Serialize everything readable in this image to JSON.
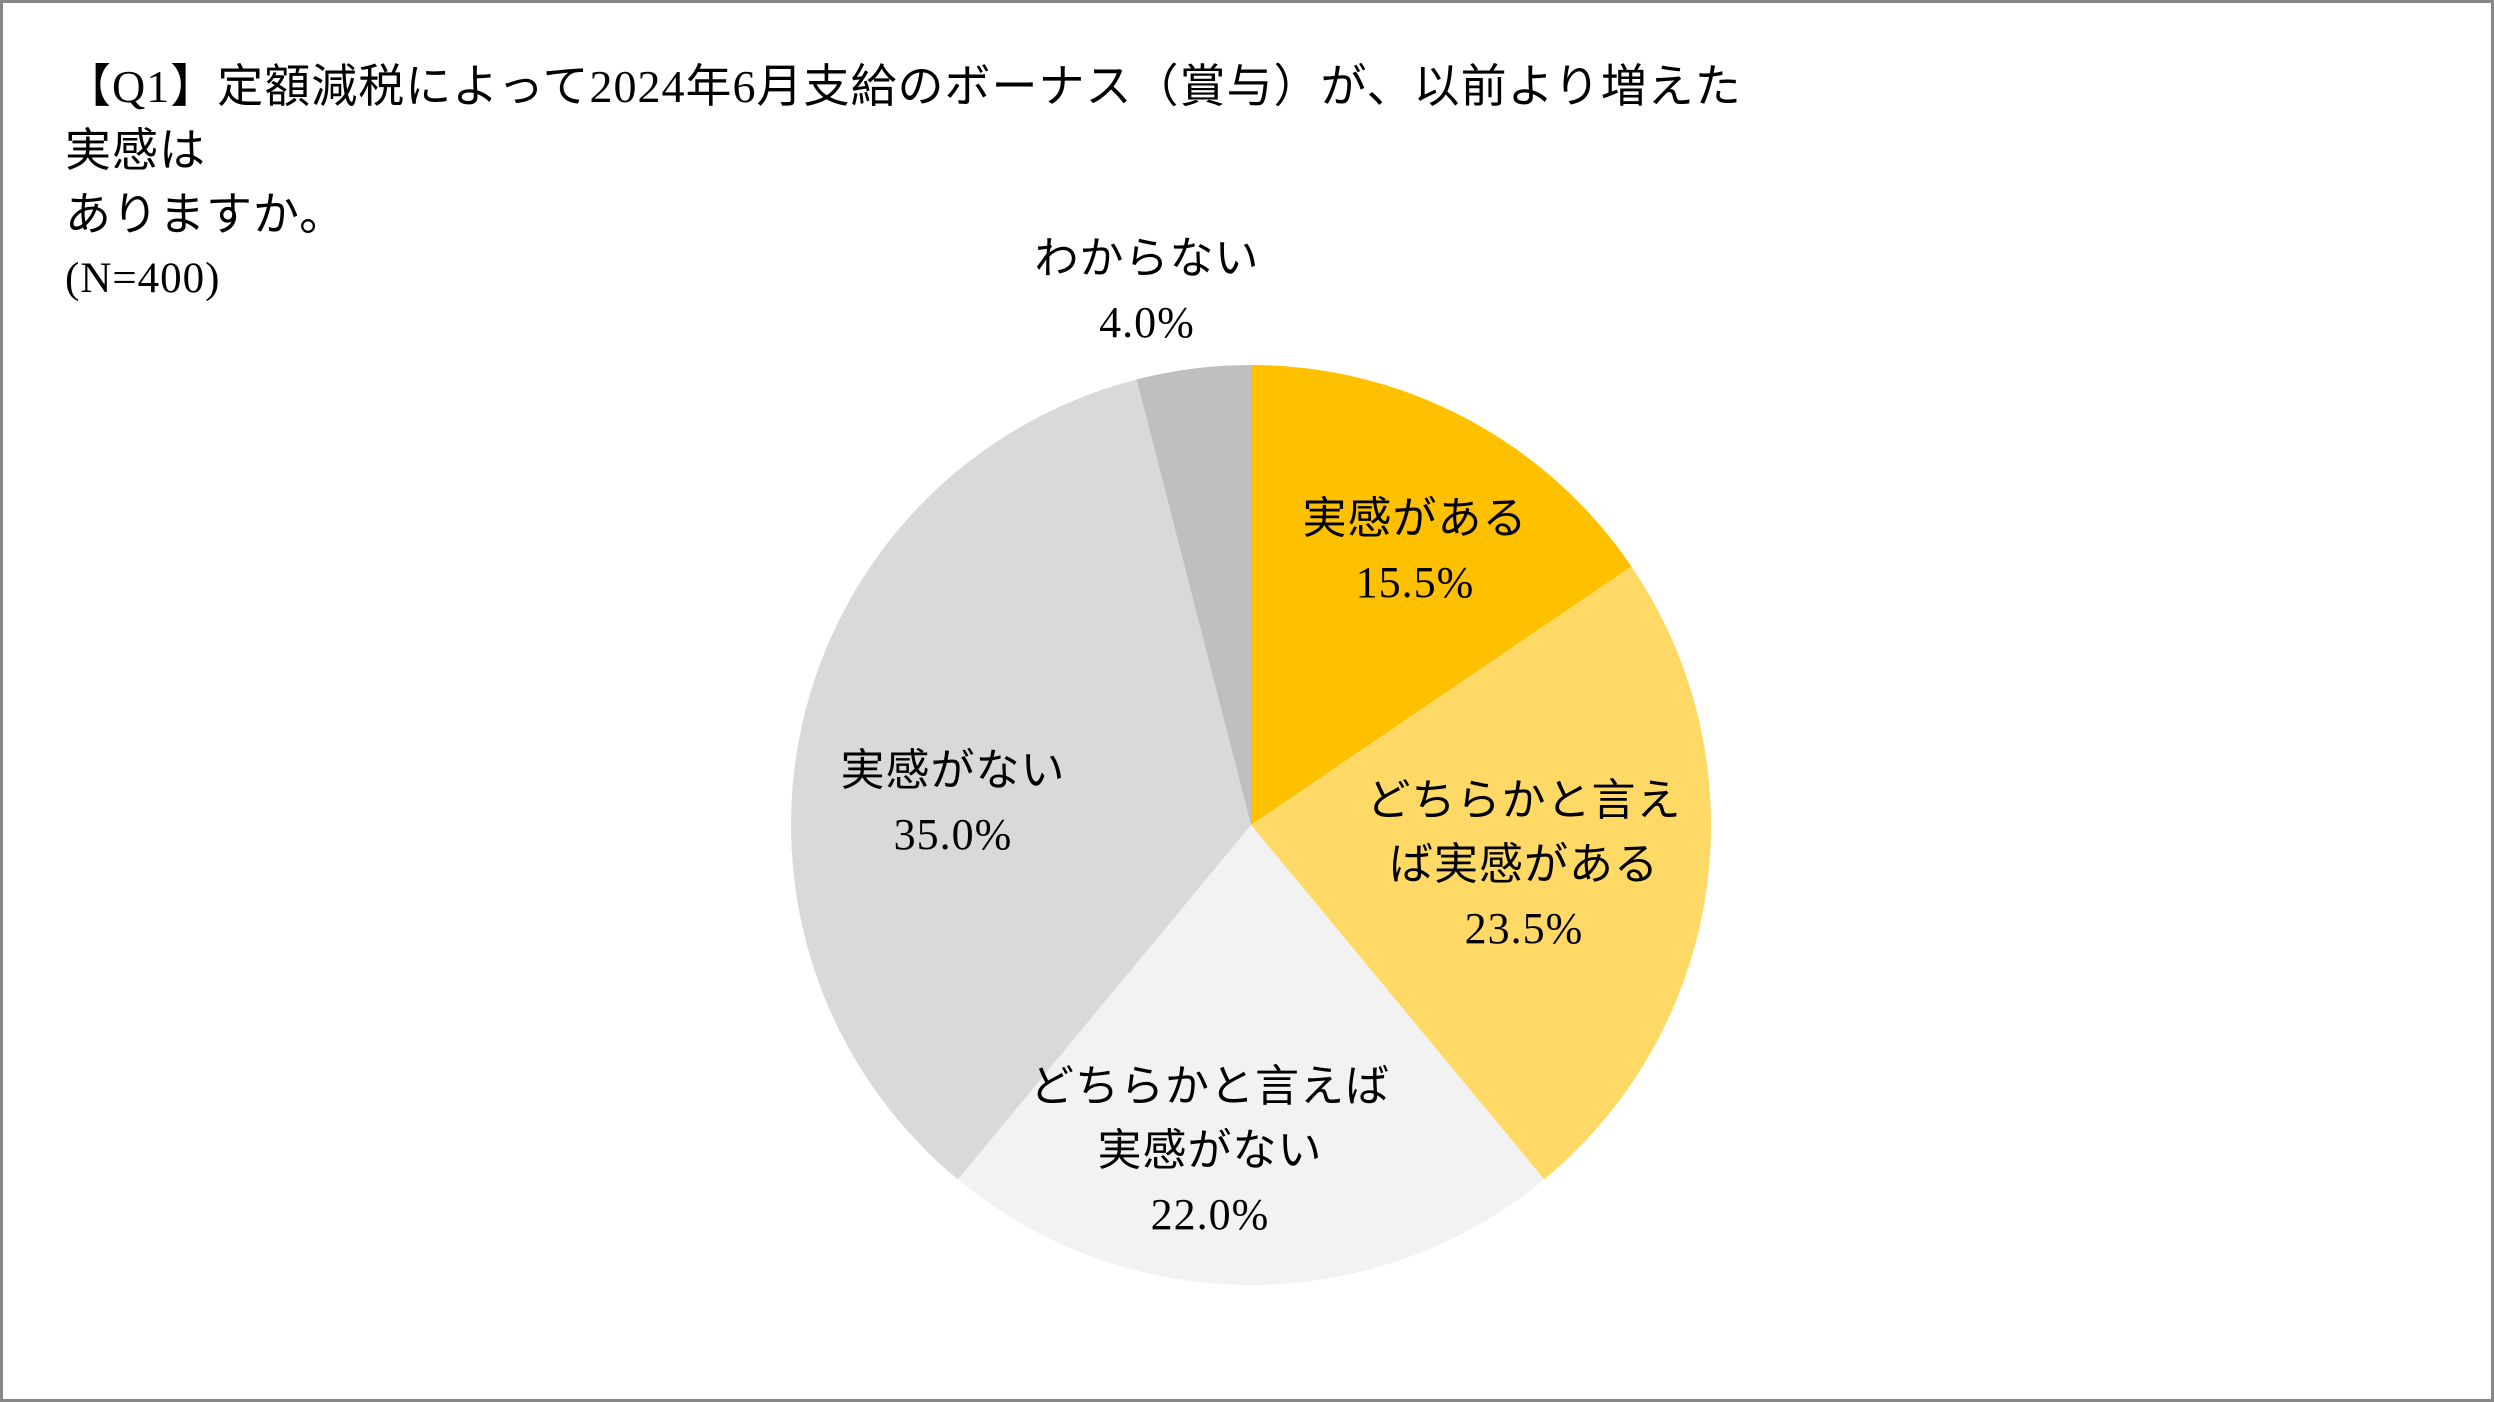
{
  "title": {
    "line1": "【Q1】定額減税によって2024年6月支給のボーナス（賞与）が、以前より増えた実感は",
    "line2": "ありますか。",
    "note": "(N=400)"
  },
  "chart_data": {
    "type": "pie",
    "title": "",
    "unit": "%",
    "start_angle_deg": 0,
    "direction": "clockwise",
    "legend": "none",
    "categories": [
      "実感がある",
      "どちらかと言えば実感がある",
      "どちらかと言えば実感がない",
      "実感がない",
      "わからない"
    ],
    "values": [
      15.5,
      23.5,
      22.0,
      35.0,
      4.0
    ],
    "colors": [
      "#FFC000",
      "#FFD966",
      "#F2F2F2",
      "#D9D9D9",
      "#BFBFBF"
    ],
    "slices": [
      {
        "name": "実感がある",
        "value": 15.5,
        "value_label": "15.5%",
        "color": "#FFC000",
        "label_lines": [
          "実感がある"
        ]
      },
      {
        "name": "どちらかと言えば実感がある",
        "value": 23.5,
        "value_label": "23.5%",
        "color": "#FFD966",
        "label_lines": [
          "どちらかと言え",
          "ば実感がある"
        ]
      },
      {
        "name": "どちらかと言えば実感がない",
        "value": 22.0,
        "value_label": "22.0%",
        "color": "#F2F2F2",
        "label_lines": [
          "どちらかと言えば",
          "実感がない"
        ]
      },
      {
        "name": "実感がない",
        "value": 35.0,
        "value_label": "35.0%",
        "color": "#D9D9D9",
        "label_lines": [
          "実感がない"
        ]
      },
      {
        "name": "わからない",
        "value": 4.0,
        "value_label": "4.0%",
        "color": "#BFBFBF",
        "label_lines": [
          "わからない"
        ]
      }
    ]
  }
}
